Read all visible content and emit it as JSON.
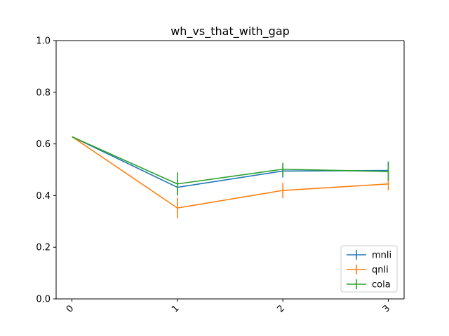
{
  "chart_data": {
    "type": "line",
    "title": "wh_vs_that_with_gap",
    "xlabel": "",
    "ylabel": "",
    "x": [
      0,
      1,
      2,
      3
    ],
    "x_tick_labels": [
      "0",
      "1",
      "2",
      "3"
    ],
    "xlim": [
      -0.15,
      3.15
    ],
    "ylim": [
      0.0,
      1.0
    ],
    "y_ticks": [
      0.0,
      0.2,
      0.4,
      0.6,
      0.8,
      1.0
    ],
    "y_tick_labels": [
      "0.0",
      "0.2",
      "0.4",
      "0.6",
      "0.8",
      "1.0"
    ],
    "grid": false,
    "legend_position": "lower-right",
    "series": [
      {
        "name": "mnli",
        "color": "#1f77b4",
        "values": [
          0.628,
          0.432,
          0.495,
          0.497
        ],
        "errors": [
          0.0,
          0.03,
          0.025,
          0.035
        ]
      },
      {
        "name": "qnli",
        "color": "#ff7f0e",
        "values": [
          0.628,
          0.352,
          0.42,
          0.445
        ],
        "errors": [
          0.0,
          0.04,
          0.03,
          0.025
        ]
      },
      {
        "name": "cola",
        "color": "#2ca02c",
        "values": [
          0.628,
          0.445,
          0.502,
          0.493
        ],
        "errors": [
          0.0,
          0.045,
          0.025,
          0.035
        ]
      }
    ]
  }
}
